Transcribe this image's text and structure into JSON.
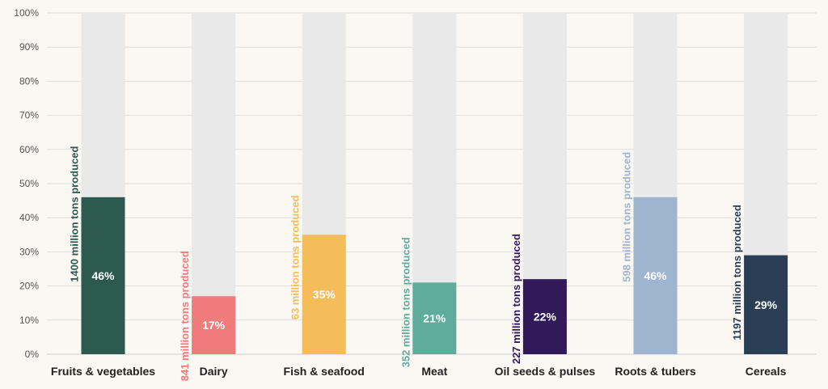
{
  "chart_data": {
    "type": "bar",
    "title": "",
    "xlabel": "",
    "ylabel": "",
    "ylim": [
      0,
      100
    ],
    "y_ticks": [
      "0%",
      "10%",
      "20%",
      "30%",
      "40%",
      "50%",
      "60%",
      "70%",
      "80%",
      "90%",
      "100%"
    ],
    "grid": true,
    "background_bar_color": "#e9e9e9",
    "categories": [
      "Fruits & vegetables",
      "Dairy",
      "Fish & seafood",
      "Meat",
      "Oil seeds & pulses",
      "Roots & tubers",
      "Cereals"
    ],
    "values": [
      46,
      17,
      35,
      21,
      22,
      46,
      29
    ],
    "value_labels": [
      "46%",
      "17%",
      "35%",
      "21%",
      "22%",
      "46%",
      "29%"
    ],
    "annotations": [
      "1400 million tons produced",
      "841  million tons produced",
      "63 million tons produced",
      "352  million tons produced",
      "227 million tons produced",
      "598 million tons produced",
      "1197 million tons produced"
    ],
    "colors": [
      "#2d5a4f",
      "#ef7b7b",
      "#f5bc5a",
      "#5fab9c",
      "#321a5a",
      "#9fb5cf",
      "#2a3f55"
    ]
  }
}
